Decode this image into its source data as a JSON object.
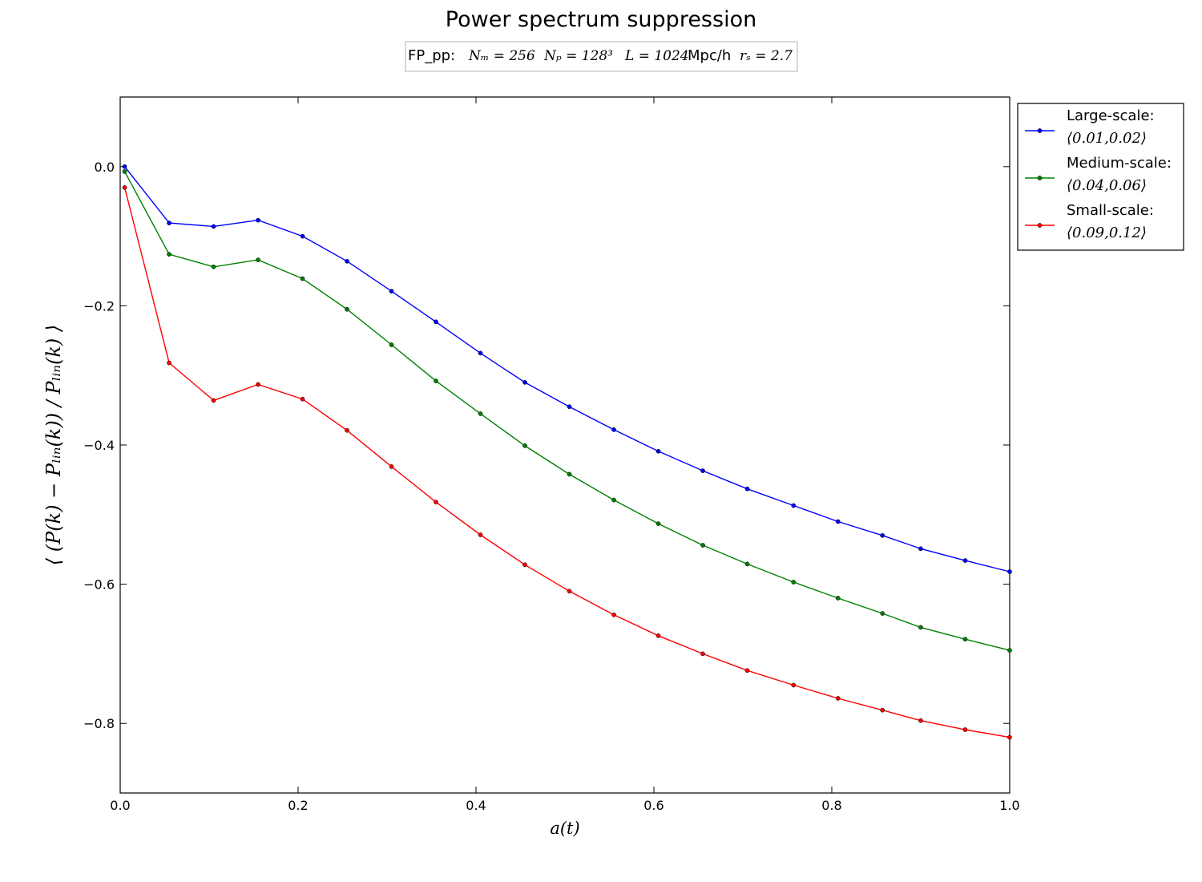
{
  "chart_data": {
    "type": "line",
    "title": "Power spectrum suppression",
    "subtitle": {
      "prefix": "FP_pp:",
      "nm": "Nₘ = 256",
      "np": "Nₚ = 128³",
      "l": "L = 1024",
      "l_unit": "Mpc/h",
      "rs": "rₛ = 2.7"
    },
    "xlabel": "a(t)",
    "ylabel": "⟨ (P(k) − Pₗᵢₙ(k)) / Pₗᵢₙ(k) ⟩",
    "xlim": [
      0.0,
      1.0
    ],
    "ylim": [
      -0.9,
      0.1
    ],
    "xticks": [
      0.0,
      0.2,
      0.4,
      0.6,
      0.8,
      1.0
    ],
    "xtick_labels": [
      "0.0",
      "0.2",
      "0.4",
      "0.6",
      "0.8",
      "1.0"
    ],
    "yticks": [
      0.0,
      -0.2,
      -0.4,
      -0.6,
      -0.8
    ],
    "ytick_labels": [
      "0.0",
      "−0.2",
      "−0.4",
      "−0.6",
      "−0.8"
    ],
    "grid": false,
    "legend_position": "outside-right",
    "x": [
      0.005,
      0.055,
      0.105,
      0.155,
      0.205,
      0.255,
      0.305,
      0.355,
      0.405,
      0.455,
      0.505,
      0.555,
      0.605,
      0.655,
      0.705,
      0.757,
      0.807,
      0.857,
      0.9,
      0.95,
      1.0
    ],
    "series": [
      {
        "name": "Large-scale:",
        "range_label": "⟨0.01,0.02⟩",
        "color": "#0000ff",
        "values": [
          0.0,
          -0.081,
          -0.086,
          -0.077,
          -0.1,
          -0.136,
          -0.179,
          -0.223,
          -0.268,
          -0.31,
          -0.345,
          -0.378,
          -0.409,
          -0.437,
          -0.463,
          -0.487,
          -0.51,
          -0.53,
          -0.549,
          -0.566,
          -0.582
        ]
      },
      {
        "name": "Medium-scale:",
        "range_label": "⟨0.04,0.06⟩",
        "color": "#008000",
        "values": [
          -0.007,
          -0.126,
          -0.144,
          -0.134,
          -0.161,
          -0.205,
          -0.256,
          -0.308,
          -0.355,
          -0.401,
          -0.442,
          -0.479,
          -0.513,
          -0.544,
          -0.571,
          -0.597,
          -0.62,
          -0.642,
          -0.662,
          -0.679,
          -0.695
        ]
      },
      {
        "name": "Small-scale:",
        "range_label": "⟨0.09,0.12⟩",
        "color": "#ff0000",
        "values": [
          -0.03,
          -0.282,
          -0.336,
          -0.313,
          -0.334,
          -0.379,
          -0.431,
          -0.482,
          -0.529,
          -0.572,
          -0.61,
          -0.644,
          -0.674,
          -0.7,
          -0.724,
          -0.745,
          -0.764,
          -0.781,
          -0.796,
          -0.809,
          -0.82
        ]
      }
    ]
  }
}
